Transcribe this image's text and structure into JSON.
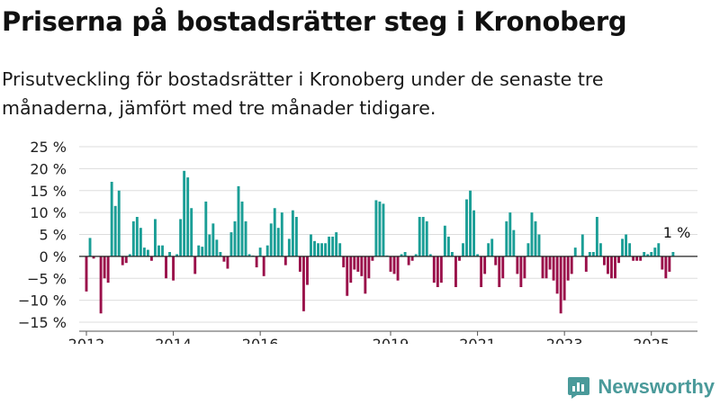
{
  "title": "Priserna på bostadsrätter steg i Kronoberg",
  "subtitle": "Prisutveckling för bostadsrätter i Kronoberg under de senaste tre månaderna, jämfört med tre månader tidigare.",
  "brand": "Newsworthy",
  "colors": {
    "positive": "#1a9e96",
    "negative": "#9a0f4a",
    "grid": "#dddddd",
    "brand": "#4a9a9a"
  },
  "chart_data": {
    "type": "bar",
    "x_start": "2012-01",
    "x_end": "2025-12",
    "ylim": [
      -15,
      25
    ],
    "yticks": [
      25,
      20,
      15,
      10,
      5,
      0,
      -5,
      -10,
      -15
    ],
    "ytick_labels": [
      "25 %",
      "20 %",
      "15 %",
      "10 %",
      "5 %",
      "0 %",
      "−5 %",
      "−10 %",
      "−15 %"
    ],
    "xticks": [
      {
        "label": "2012",
        "date": "2012-01"
      },
      {
        "label": "2014",
        "date": "2014-01"
      },
      {
        "label": "2016",
        "date": "2016-01"
      },
      {
        "label": "2019",
        "date": "2019-01"
      },
      {
        "label": "2021",
        "date": "2021-01"
      },
      {
        "label": "2023",
        "date": "2023-01"
      },
      {
        "label": "2025",
        "date": "2025-01"
      }
    ],
    "annotation": {
      "label": "1 %",
      "date": "2025-04",
      "value": 1
    },
    "grid": true,
    "values": [
      -8,
      4.2,
      -0.5,
      0,
      -13,
      -5,
      -6,
      17,
      11.5,
      15,
      -2,
      -1.5,
      0.5,
      8,
      9,
      6.5,
      2,
      1.5,
      -1,
      8.5,
      2.5,
      2.5,
      -5,
      1,
      -5.5,
      0.5,
      8.5,
      19.5,
      18,
      11,
      -4,
      2.5,
      2.2,
      12.5,
      5,
      7.5,
      3.8,
      1,
      -1.2,
      -2.8,
      5.5,
      8,
      16,
      12.5,
      8,
      0.5,
      0.2,
      -2.5,
      2,
      -4.5,
      2.5,
      7.5,
      11,
      6.5,
      10,
      -2,
      4,
      10.5,
      9,
      -3.5,
      -12.5,
      -6.5,
      5,
      3.5,
      3,
      3,
      3,
      4.5,
      4.5,
      5.5,
      3,
      -2.5,
      -9,
      -6,
      -3,
      -3.5,
      -4.5,
      -8.5,
      -5,
      -1,
      12.8,
      12.5,
      12,
      0.2,
      -3.5,
      -4,
      -5.5,
      0.5,
      1,
      -2,
      -1,
      0.5,
      9,
      9,
      8,
      0.5,
      -6,
      -7,
      -6,
      7,
      4.5,
      1,
      -7,
      -1,
      3,
      13,
      15,
      10.5,
      0.5,
      -7,
      -4,
      3,
      4,
      -2,
      -7,
      -5,
      8,
      10,
      6,
      -4,
      -7,
      -5,
      3,
      10,
      8,
      5,
      -5,
      -5,
      -3,
      -5.5,
      -8.5,
      -13,
      -10,
      -5.5,
      -4,
      2,
      0,
      5,
      -3.5,
      1,
      1,
      9,
      3,
      -2,
      -4,
      -5,
      -5,
      -1.5,
      4,
      5,
      3,
      -1,
      -1,
      -1,
      1,
      0.5,
      1,
      2,
      3,
      -3,
      -5,
      -3.5,
      1
    ]
  }
}
